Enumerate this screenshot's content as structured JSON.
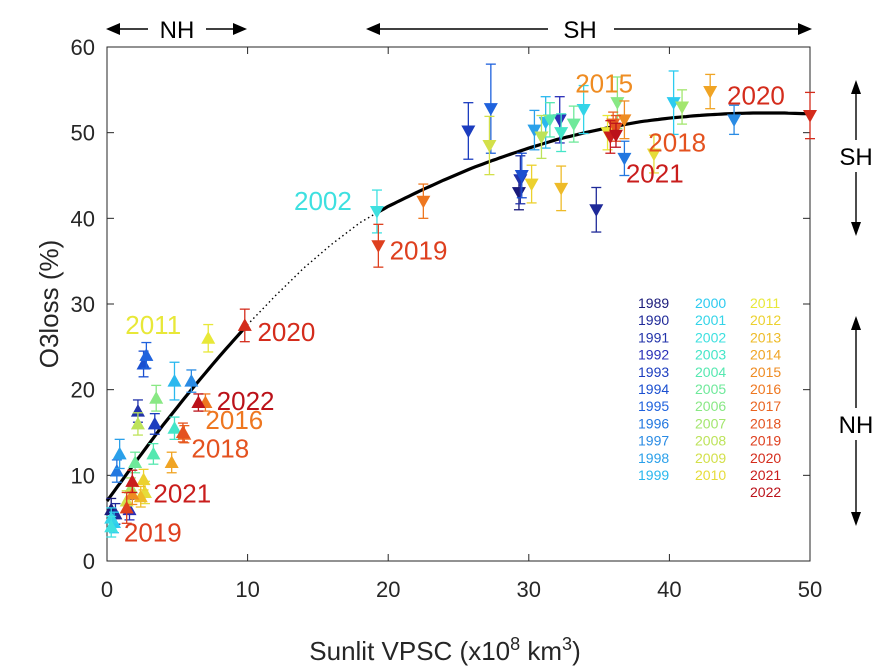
{
  "chart_data": {
    "type": "scatter",
    "xlabel": "Sunlit VPSC (x10",
    "xlabel_sup1": "8",
    "xlabel_mid": " km",
    "xlabel_sup2": "3",
    "xlabel_end": ")",
    "ylabel": "O3loss (%)",
    "xlim": [
      0,
      50
    ],
    "ylim": [
      0,
      60
    ],
    "x_ticks": [
      "0",
      "10",
      "20",
      "30",
      "40",
      "50"
    ],
    "y_ticks": [
      "0",
      "10",
      "20",
      "30",
      "40",
      "50",
      "60"
    ],
    "grid": false,
    "legend_placement": "lower-right",
    "hemisphere_labels": {
      "nh_top": "NH",
      "sh_top": "SH",
      "sh_right": "SH",
      "nh_right": "NH"
    },
    "year_colors": {
      "1989": "#1a1a7a",
      "1990": "#1f2a99",
      "1991": "#2233aa",
      "1992": "#2a2fb8",
      "1993": "#1c3dbf",
      "1994": "#1a4fd0",
      "1995": "#1f62dd",
      "1996": "#2277e0",
      "1997": "#2a8be4",
      "1998": "#2aa0ea",
      "1999": "#2ab8ee",
      "2000": "#2ccbf0",
      "2001": "#33d4e8",
      "2002": "#3ee0e0",
      "2003": "#44e5c8",
      "2004": "#55e8b0",
      "2005": "#6ee99a",
      "2006": "#88e884",
      "2007": "#a3e66e",
      "2008": "#bde35a",
      "2009": "#d3e04a",
      "2010": "#e6dc3a",
      "2011": "#e8e838",
      "2012": "#ecd12e",
      "2013": "#eebb28",
      "2014": "#f0a424",
      "2015": "#ef8c22",
      "2016": "#ee7720",
      "2017": "#ea6420",
      "2018": "#e4521f",
      "2019": "#de3f1e",
      "2020": "#d42c1c",
      "2021": "#c91d1c",
      "2022": "#bb121a"
    },
    "legend_columns": [
      [
        "1989",
        "1990",
        "1991",
        "1992",
        "1993",
        "1994",
        "1995",
        "1996",
        "1997",
        "1998",
        "1999"
      ],
      [
        "2000",
        "2001",
        "2002",
        "2003",
        "2004",
        "2005",
        "2006",
        "2007",
        "2008",
        "2009",
        "2010"
      ],
      [
        "2011",
        "2012",
        "2013",
        "2014",
        "2015",
        "2016",
        "2017",
        "2018",
        "2019",
        "2020",
        "2021",
        "2022"
      ]
    ],
    "series": [
      {
        "name": "NH",
        "marker": "triangle-up",
        "points": [
          {
            "year": "1989",
            "x": 0.3,
            "y": 6.0,
            "err": 1.3
          },
          {
            "year": "1990",
            "x": 0.6,
            "y": 5.5,
            "err": 1.2
          },
          {
            "year": "1991",
            "x": 2.2,
            "y": 17.5,
            "err": 1.3
          },
          {
            "year": "1992",
            "x": 1.6,
            "y": 6.0,
            "err": 1.2
          },
          {
            "year": "1993",
            "x": 3.4,
            "y": 16.0,
            "err": 1.2
          },
          {
            "year": "1994",
            "x": 2.6,
            "y": 23.0,
            "err": 1.5
          },
          {
            "year": "1995",
            "x": 2.8,
            "y": 24.0,
            "err": 1.5
          },
          {
            "year": "1996",
            "x": 0.7,
            "y": 10.5,
            "err": 1.3
          },
          {
            "year": "1997",
            "x": 6.0,
            "y": 21.0,
            "err": 1.3
          },
          {
            "year": "1998",
            "x": 0.9,
            "y": 12.5,
            "err": 1.7
          },
          {
            "year": "1999",
            "x": 4.8,
            "y": 21.0,
            "err": 2.2
          },
          {
            "year": "2000",
            "x": 0.5,
            "y": 4.5,
            "err": 1.2
          },
          {
            "year": "2001",
            "x": 0.3,
            "y": 5.0,
            "err": 1.2
          },
          {
            "year": "2002",
            "x": 0.3,
            "y": 4.0,
            "err": 1.2
          },
          {
            "year": "2003",
            "x": 4.8,
            "y": 15.5,
            "err": 1.3
          },
          {
            "year": "2004",
            "x": 3.3,
            "y": 12.5,
            "err": 1.2
          },
          {
            "year": "2005",
            "x": 2.0,
            "y": 11.5,
            "err": 1.2
          },
          {
            "year": "2006",
            "x": 3.5,
            "y": 19.0,
            "err": 1.5
          },
          {
            "year": "2007",
            "x": 1.7,
            "y": 8.5,
            "err": 1.2
          },
          {
            "year": "2008",
            "x": 2.2,
            "y": 16.0,
            "err": 1.3
          },
          {
            "year": "2009",
            "x": 1.4,
            "y": 7.0,
            "err": 1.2
          },
          {
            "year": "2010",
            "x": 2.7,
            "y": 8.0,
            "err": 1.3
          },
          {
            "year": "2011",
            "x": 7.2,
            "y": 26.0,
            "err": 1.6
          },
          {
            "year": "2012",
            "x": 2.6,
            "y": 9.5,
            "err": 1.2
          },
          {
            "year": "2013",
            "x": 2.4,
            "y": 7.5,
            "err": 1.2
          },
          {
            "year": "2014",
            "x": 4.6,
            "y": 11.5,
            "err": 1.2
          },
          {
            "year": "2015",
            "x": 1.8,
            "y": 7.8,
            "err": 1.2
          },
          {
            "year": "2016",
            "x": 7.0,
            "y": 18.5,
            "err": 1.0
          },
          {
            "year": "2017",
            "x": 5.5,
            "y": 14.8,
            "err": 1.0
          },
          {
            "year": "2018",
            "x": 5.4,
            "y": 15.0,
            "err": 1.1
          },
          {
            "year": "2019",
            "x": 1.4,
            "y": 6.2,
            "err": 1.8
          },
          {
            "year": "2020",
            "x": 9.8,
            "y": 27.5,
            "err": 1.9
          },
          {
            "year": "2021",
            "x": 1.8,
            "y": 9.3,
            "err": 1.3
          },
          {
            "year": "2022",
            "x": 6.5,
            "y": 18.5,
            "err": 1.0
          }
        ]
      },
      {
        "name": "SH",
        "marker": "triangle-down",
        "points": [
          {
            "year": "1989",
            "x": 29.3,
            "y": 43.0,
            "err": 2.0
          },
          {
            "year": "1990",
            "x": 34.8,
            "y": 41.0,
            "err": 2.6
          },
          {
            "year": "1991",
            "x": 29.4,
            "y": 44.5,
            "err": 2.8
          },
          {
            "year": "1992",
            "x": 32.2,
            "y": 51.5,
            "err": 2.7
          },
          {
            "year": "1993",
            "x": 25.7,
            "y": 50.2,
            "err": 3.3
          },
          {
            "year": "1994",
            "x": 29.5,
            "y": 45.0,
            "err": 2.6
          },
          {
            "year": "1995",
            "x": 27.3,
            "y": 52.8,
            "err": 5.2
          },
          {
            "year": "1996",
            "x": 36.8,
            "y": 47.0,
            "err": 2.0
          },
          {
            "year": "1997",
            "x": 44.6,
            "y": 51.5,
            "err": 1.7
          },
          {
            "year": "1998",
            "x": 30.4,
            "y": 50.3,
            "err": 2.3
          },
          {
            "year": "1999",
            "x": 31.2,
            "y": 51.2,
            "err": 3.0
          },
          {
            "year": "2000",
            "x": 40.3,
            "y": 53.5,
            "err": 3.7
          },
          {
            "year": "2001",
            "x": 33.9,
            "y": 52.7,
            "err": 2.8
          },
          {
            "year": "2002",
            "x": 19.2,
            "y": 40.8,
            "err": 2.5
          },
          {
            "year": "2003",
            "x": 32.3,
            "y": 50.0,
            "err": 2.2
          },
          {
            "year": "2004",
            "x": 31.5,
            "y": 51.5,
            "err": 2.0
          },
          {
            "year": "2005",
            "x": 33.2,
            "y": 51.0,
            "err": 2.1
          },
          {
            "year": "2006",
            "x": 36.3,
            "y": 53.5,
            "err": 3.0
          },
          {
            "year": "2007",
            "x": 40.9,
            "y": 53.0,
            "err": 2.0
          },
          {
            "year": "2008",
            "x": 30.9,
            "y": 49.5,
            "err": 2.5
          },
          {
            "year": "2009",
            "x": 27.2,
            "y": 48.5,
            "err": 3.4
          },
          {
            "year": "2010",
            "x": 38.9,
            "y": 47.5,
            "err": 2.2
          },
          {
            "year": "2011",
            "x": 35.6,
            "y": 50.0,
            "err": 2.0
          },
          {
            "year": "2012",
            "x": 30.2,
            "y": 44.0,
            "err": 2.2
          },
          {
            "year": "2013",
            "x": 32.3,
            "y": 43.5,
            "err": 2.6
          },
          {
            "year": "2014",
            "x": 42.9,
            "y": 54.8,
            "err": 2.0
          },
          {
            "year": "2015",
            "x": 36.8,
            "y": 51.5,
            "err": 2.2
          },
          {
            "year": "2016",
            "x": 22.5,
            "y": 42.0,
            "err": 2.0
          },
          {
            "year": "2017",
            "x": 36.0,
            "y": 51.0,
            "err": 1.4
          },
          {
            "year": "2018",
            "x": 36.2,
            "y": 50.5,
            "err": 1.5
          },
          {
            "year": "2019",
            "x": 19.3,
            "y": 36.8,
            "err": 2.5
          },
          {
            "year": "2020",
            "x": 50.0,
            "y": 52.0,
            "err": 2.7
          },
          {
            "year": "2021",
            "x": 35.8,
            "y": 49.5,
            "err": 1.9
          },
          {
            "year": "2022",
            "x": 36.2,
            "y": 49.7,
            "err": 1.4
          }
        ]
      }
    ],
    "fit_curve": {
      "x": [
        0,
        2,
        4,
        6,
        8,
        10,
        12,
        14,
        16,
        18,
        20,
        22,
        24,
        26,
        28,
        30,
        32,
        34,
        36,
        38,
        40,
        42,
        44,
        46,
        48,
        50
      ],
      "y": [
        7.0,
        11.5,
        15.9,
        20.0,
        23.9,
        27.6,
        31.0,
        34.2,
        37.0,
        39.5,
        41.4,
        43.0,
        44.5,
        45.9,
        47.1,
        48.2,
        49.2,
        50.0,
        50.7,
        51.3,
        51.7,
        52.0,
        52.2,
        52.3,
        52.3,
        52.2
      ],
      "solid_ranges": [
        [
          0,
          9.8
        ],
        [
          19.2,
          50
        ]
      ]
    },
    "annotations": [
      {
        "text": "2002",
        "year": "2002",
        "x": 13.3,
        "y": 41.0
      },
      {
        "text": "2019",
        "year": "2019",
        "x": 20.1,
        "y": 35.2
      },
      {
        "text": "2015",
        "year": "2015",
        "x": 33.3,
        "y": 54.7
      },
      {
        "text": "2020",
        "year": "2020",
        "x": 44.1,
        "y": 53.3
      },
      {
        "text": "2018",
        "year": "2018",
        "x": 38.5,
        "y": 47.8
      },
      {
        "text": "2021",
        "year": "2021",
        "x": 36.9,
        "y": 44.2
      },
      {
        "text": "2011",
        "year": "2011",
        "x": 1.3,
        "y": 26.5
      },
      {
        "text": "2020",
        "year": "2020",
        "x": 10.7,
        "y": 25.7
      },
      {
        "text": "2022",
        "year": "2022",
        "x": 7.8,
        "y": 17.6
      },
      {
        "text": "2016",
        "year": "2016",
        "x": 7.0,
        "y": 15.4
      },
      {
        "text": "2018",
        "year": "2018",
        "x": 6.0,
        "y": 12.1
      },
      {
        "text": "2021",
        "year": "2021",
        "x": 3.3,
        "y": 6.8
      },
      {
        "text": "2019",
        "year": "2019",
        "x": 1.2,
        "y": 2.3
      }
    ]
  }
}
